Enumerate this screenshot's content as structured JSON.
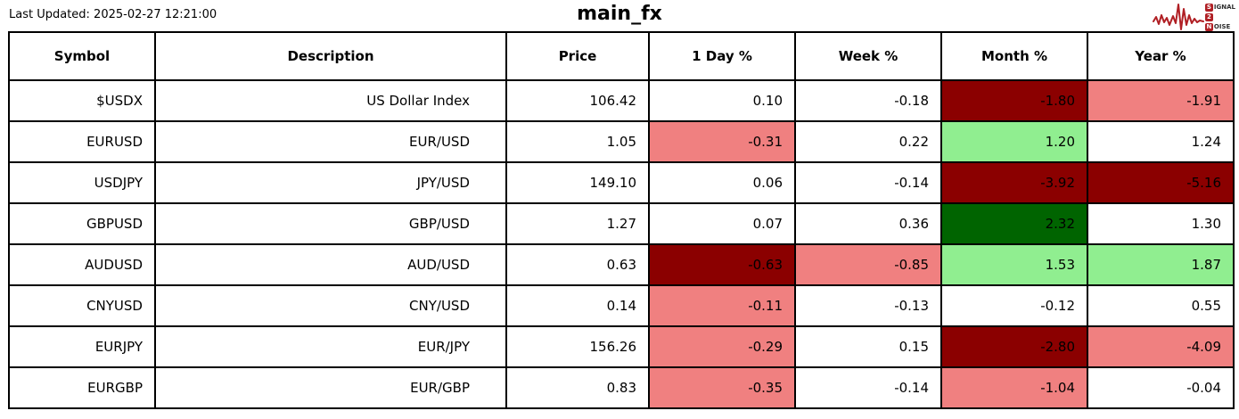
{
  "page": {
    "last_updated": "Last Updated: 2025-02-27 12:21:00",
    "title": "main_fx"
  },
  "logo": {
    "line1_initial": "S",
    "line1_rest": "IGNAL",
    "line2_initial": "2",
    "line2_rest": "",
    "line3_initial": "N",
    "line3_rest": "OISE",
    "wave_color": "#b01f24"
  },
  "colors": {
    "darkred": "#8B0000",
    "lightcoral": "#F08080",
    "lightgreen": "#90EE90",
    "darkgreen": "#006400",
    "none": "#FFFFFF"
  },
  "chart_data": {
    "type": "table",
    "title": "main_fx",
    "last_updated": "2025-02-27 12:21:00",
    "columns": [
      "Symbol",
      "Description",
      "Price",
      "1 Day %",
      "Week %",
      "Month %",
      "Year %"
    ],
    "rows": [
      {
        "symbol": "$USDX",
        "description": "US Dollar Index",
        "price": "106.42",
        "changes": [
          {
            "label": "1 Day %",
            "value": "0.10",
            "bg": "none"
          },
          {
            "label": "Week %",
            "value": "-0.18",
            "bg": "none"
          },
          {
            "label": "Month %",
            "value": "-1.80",
            "bg": "darkred"
          },
          {
            "label": "Year %",
            "value": "-1.91",
            "bg": "lightcoral"
          }
        ]
      },
      {
        "symbol": "EURUSD",
        "description": "EUR/USD",
        "price": "1.05",
        "changes": [
          {
            "label": "1 Day %",
            "value": "-0.31",
            "bg": "lightcoral"
          },
          {
            "label": "Week %",
            "value": "0.22",
            "bg": "none"
          },
          {
            "label": "Month %",
            "value": "1.20",
            "bg": "lightgreen"
          },
          {
            "label": "Year %",
            "value": "1.24",
            "bg": "none"
          }
        ]
      },
      {
        "symbol": "USDJPY",
        "description": "JPY/USD",
        "price": "149.10",
        "changes": [
          {
            "label": "1 Day %",
            "value": "0.06",
            "bg": "none"
          },
          {
            "label": "Week %",
            "value": "-0.14",
            "bg": "none"
          },
          {
            "label": "Month %",
            "value": "-3.92",
            "bg": "darkred"
          },
          {
            "label": "Year %",
            "value": "-5.16",
            "bg": "darkred"
          }
        ]
      },
      {
        "symbol": "GBPUSD",
        "description": "GBP/USD",
        "price": "1.27",
        "changes": [
          {
            "label": "1 Day %",
            "value": "0.07",
            "bg": "none"
          },
          {
            "label": "Week %",
            "value": "0.36",
            "bg": "none"
          },
          {
            "label": "Month %",
            "value": "2.32",
            "bg": "darkgreen"
          },
          {
            "label": "Year %",
            "value": "1.30",
            "bg": "none"
          }
        ]
      },
      {
        "symbol": "AUDUSD",
        "description": "AUD/USD",
        "price": "0.63",
        "changes": [
          {
            "label": "1 Day %",
            "value": "-0.63",
            "bg": "darkred"
          },
          {
            "label": "Week %",
            "value": "-0.85",
            "bg": "lightcoral"
          },
          {
            "label": "Month %",
            "value": "1.53",
            "bg": "lightgreen"
          },
          {
            "label": "Year %",
            "value": "1.87",
            "bg": "lightgreen"
          }
        ]
      },
      {
        "symbol": "CNYUSD",
        "description": "CNY/USD",
        "price": "0.14",
        "changes": [
          {
            "label": "1 Day %",
            "value": "-0.11",
            "bg": "lightcoral"
          },
          {
            "label": "Week %",
            "value": "-0.13",
            "bg": "none"
          },
          {
            "label": "Month %",
            "value": "-0.12",
            "bg": "none"
          },
          {
            "label": "Year %",
            "value": "0.55",
            "bg": "none"
          }
        ]
      },
      {
        "symbol": "EURJPY",
        "description": "EUR/JPY",
        "price": "156.26",
        "changes": [
          {
            "label": "1 Day %",
            "value": "-0.29",
            "bg": "lightcoral"
          },
          {
            "label": "Week %",
            "value": "0.15",
            "bg": "none"
          },
          {
            "label": "Month %",
            "value": "-2.80",
            "bg": "darkred"
          },
          {
            "label": "Year %",
            "value": "-4.09",
            "bg": "lightcoral"
          }
        ]
      },
      {
        "symbol": "EURGBP",
        "description": "EUR/GBP",
        "price": "0.83",
        "changes": [
          {
            "label": "1 Day %",
            "value": "-0.35",
            "bg": "lightcoral"
          },
          {
            "label": "Week %",
            "value": "-0.14",
            "bg": "none"
          },
          {
            "label": "Month %",
            "value": "-1.04",
            "bg": "lightcoral"
          },
          {
            "label": "Year %",
            "value": "-0.04",
            "bg": "none"
          }
        ]
      }
    ],
    "layout": {
      "cell_text_align": "right",
      "header_align": "center",
      "grid": true
    }
  }
}
